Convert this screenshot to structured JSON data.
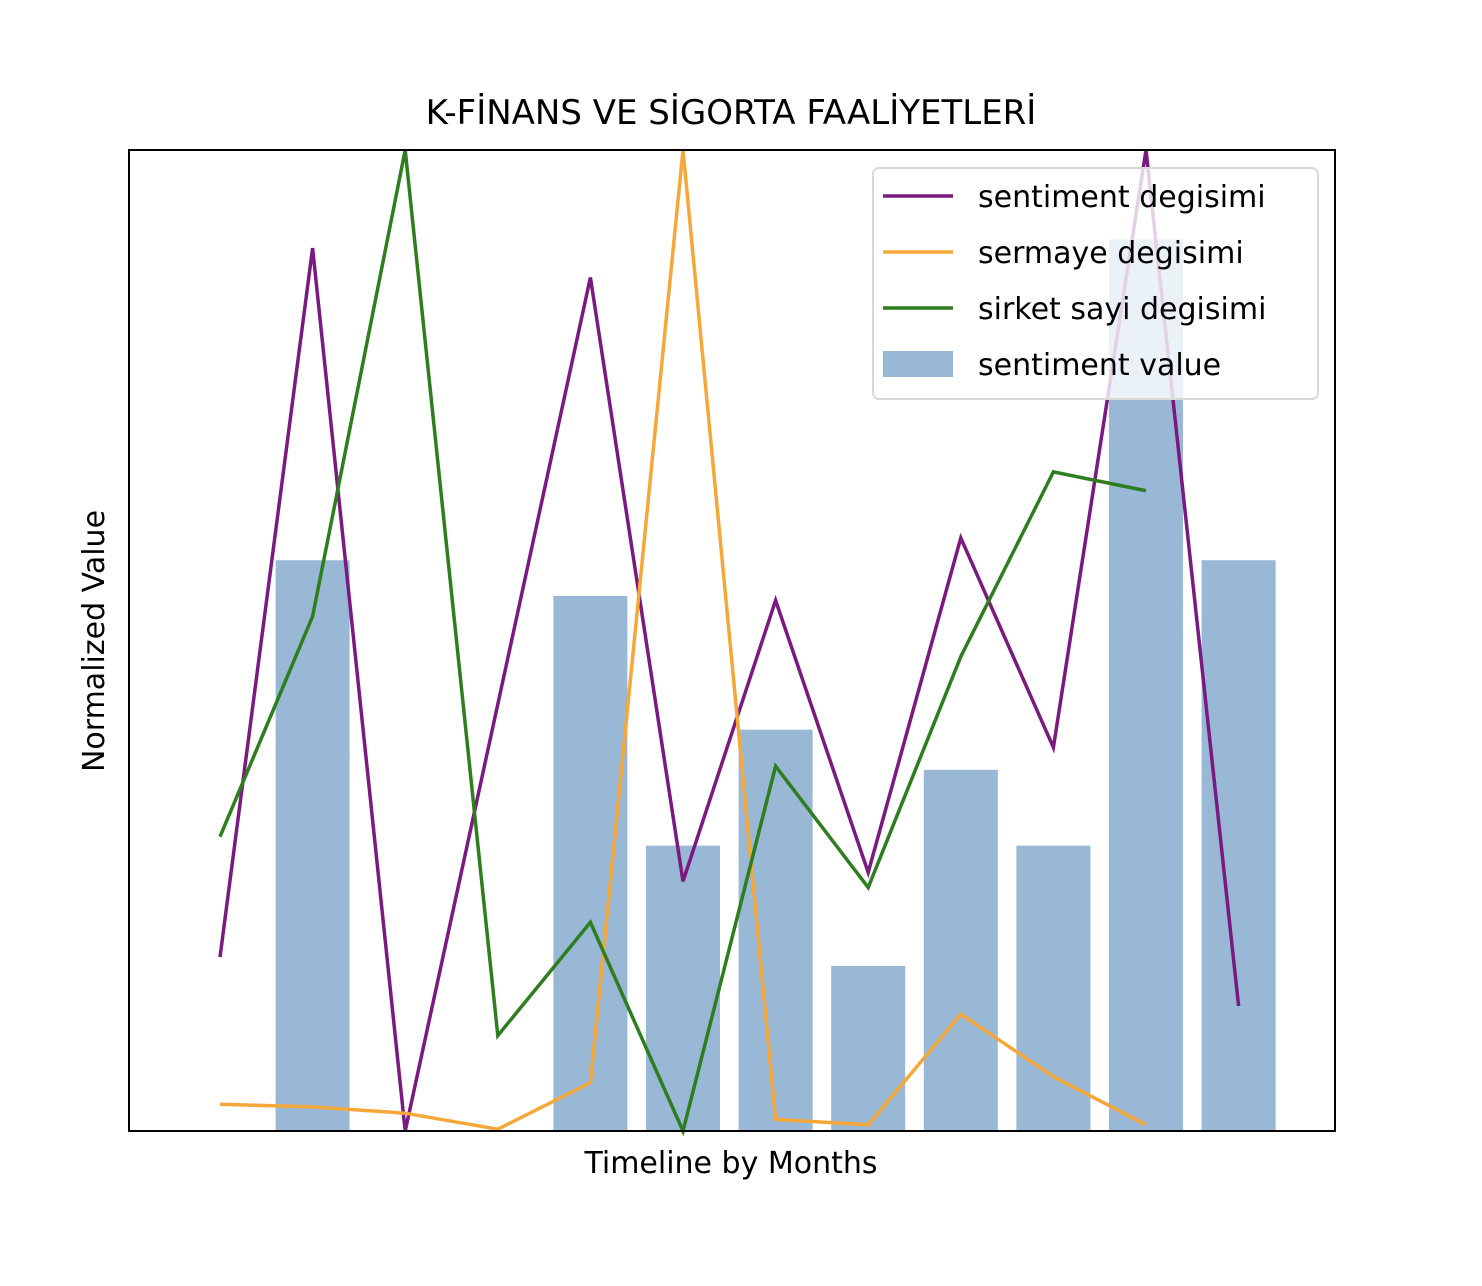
{
  "chart_data": {
    "type": "bar",
    "title": "K-FİNANS VE SİGORTA FAALİYETLERİ",
    "xlabel": "Timeline by Months",
    "ylabel": "Normalized Value",
    "x_ticks_visible": false,
    "y_ticks_visible": false,
    "grid": false,
    "legend_placement": "top-right",
    "ylim": [
      0,
      1.1
    ],
    "x": [
      0,
      1,
      2,
      3,
      4,
      5,
      6,
      7,
      8,
      9,
      10,
      11
    ],
    "bars": {
      "name": "sentiment value",
      "color": "#98b8d6",
      "values": [
        null,
        0.64,
        null,
        null,
        0.6,
        0.32,
        0.45,
        0.185,
        0.405,
        0.32,
        1.0,
        0.64
      ]
    },
    "series": [
      {
        "name": "sentiment degisimi",
        "color": "#7a1a80",
        "values": [
          0.195,
          0.99,
          0.0,
          null,
          0.957,
          0.28,
          0.595,
          0.29,
          0.665,
          0.43,
          1.1,
          0.14
        ]
      },
      {
        "name": "sermaye degisimi",
        "color": "#f5a73a",
        "values": [
          0.03,
          0.027,
          0.02,
          0.002,
          0.054,
          1.1,
          0.013,
          0.007,
          0.131,
          0.061,
          0.007,
          null
        ]
      },
      {
        "name": "sirket sayi degisimi",
        "color": "#2e7d1f",
        "values": [
          0.33,
          0.577,
          1.1,
          0.107,
          0.234,
          0.0,
          0.409,
          0.273,
          0.532,
          0.739,
          0.718,
          null
        ]
      }
    ]
  }
}
